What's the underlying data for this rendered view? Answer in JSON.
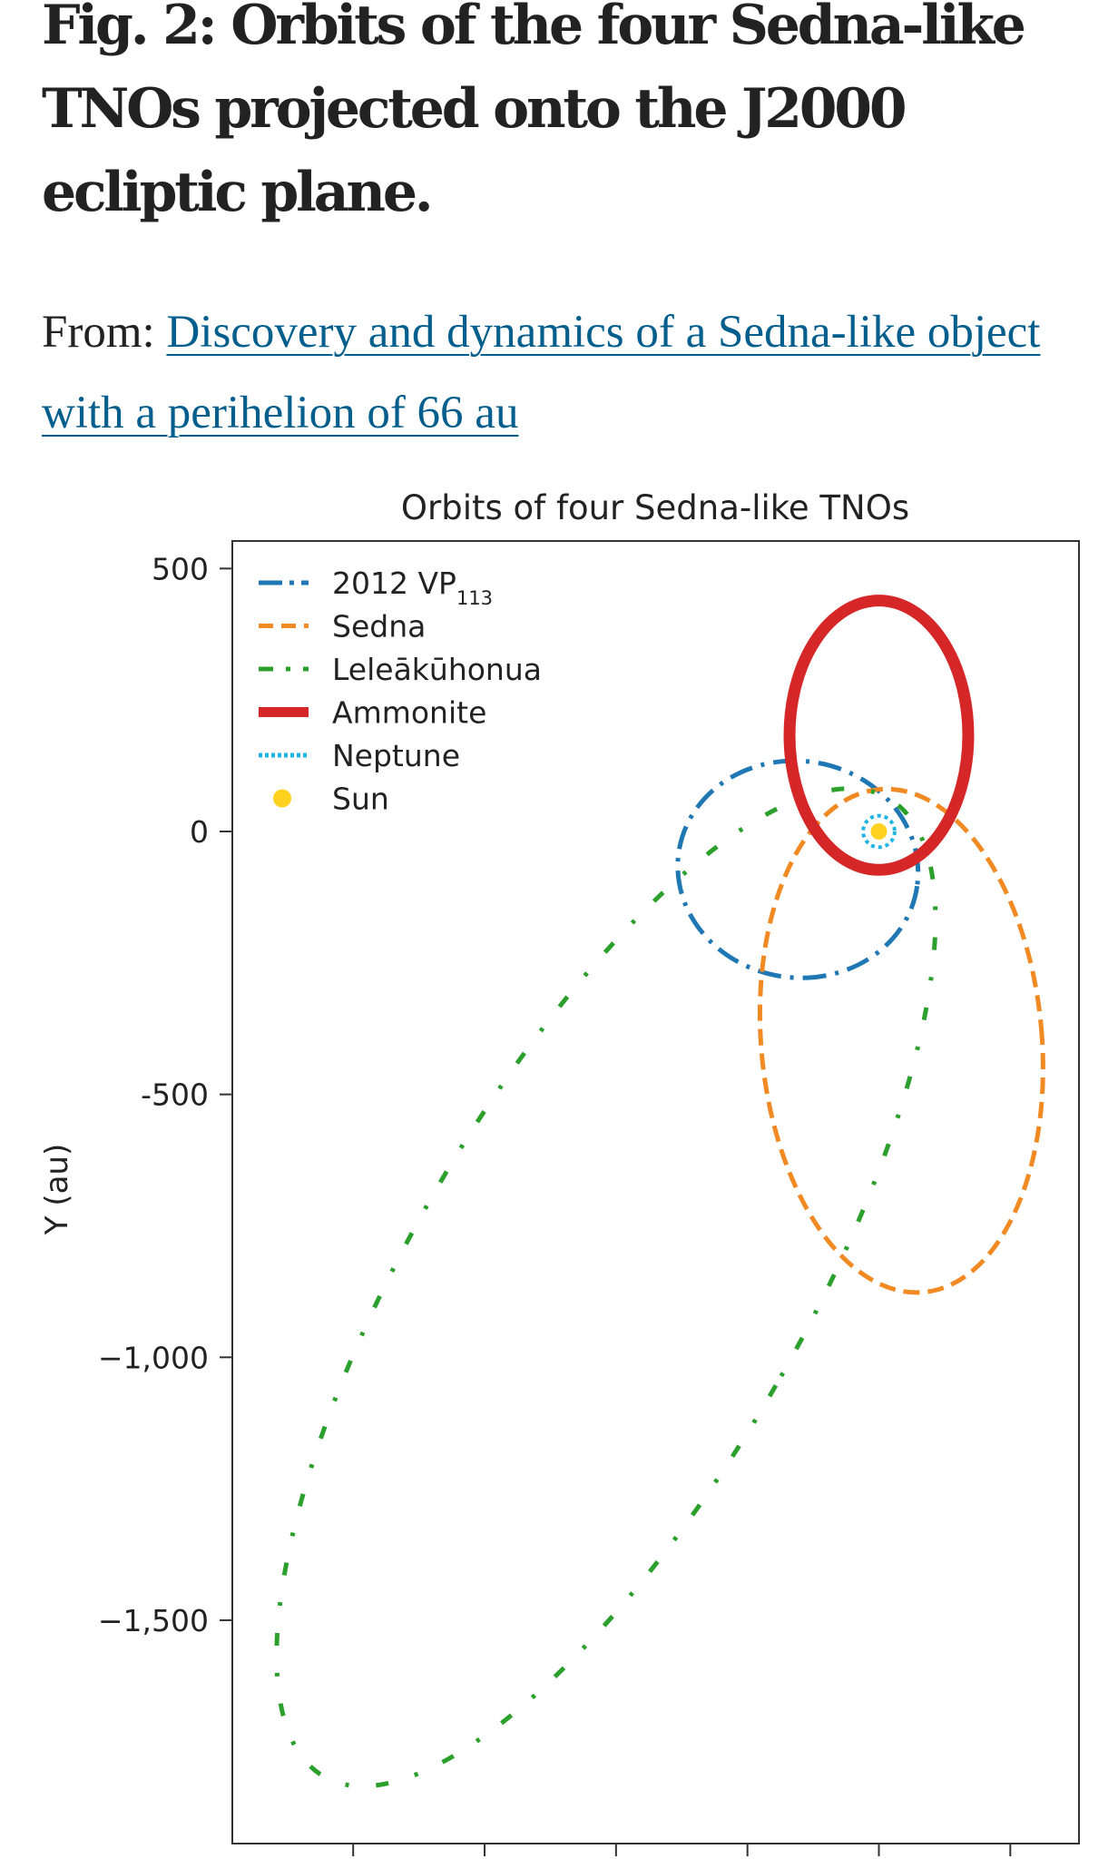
{
  "figure": {
    "title": "Fig. 2: Orbits of the four Sedna-like TNOs projected onto the J2000 ecliptic plane.",
    "from_label": "From:",
    "source_link": "Discovery and dynamics of a Sedna-like object with a perihelion of 66 au"
  },
  "colors": {
    "blue": "#1f77b4",
    "orange": "#f28a24",
    "green": "#2ca02c",
    "red": "#d62728",
    "cyan": "#1fb4e6",
    "sun": "#ffd21f",
    "link": "#025e8d"
  },
  "chart_data": {
    "type": "line",
    "title": "Orbits of four Sedna-like TNOs",
    "xlabel": "",
    "ylabel": "Y (au)",
    "ylim": [
      -1900,
      550
    ],
    "xlim": [
      -1450,
      350
    ],
    "yticks": [
      500,
      0,
      -500,
      -1000,
      -1500
    ],
    "ytick_labels": [
      "500",
      "0",
      "-500",
      "−1,000",
      "−1,500"
    ],
    "xticks": [
      -1000,
      -750,
      -500,
      -250,
      0,
      250
    ],
    "grid": false,
    "legend_position": "top-left",
    "legend": [
      {
        "name": "2012 VP",
        "sub": "113",
        "style": "dashdot",
        "color": "blue"
      },
      {
        "name": "Sedna",
        "style": "dashed",
        "color": "orange"
      },
      {
        "name": "Leleākūhonua",
        "style": "dashdot-sparse",
        "color": "green"
      },
      {
        "name": "Ammonite",
        "style": "solid-thick",
        "color": "red"
      },
      {
        "name": "Neptune",
        "style": "dotted",
        "color": "cyan"
      },
      {
        "name": "Sun",
        "style": "marker",
        "color": "sun"
      }
    ],
    "orbits": [
      {
        "name": "2012 VP113",
        "center": [
          -154,
          -72
        ],
        "semi_x": 229,
        "semi_y": 206,
        "rotation_deg": 8,
        "color": "blue",
        "dash": "dashdot"
      },
      {
        "name": "Sedna",
        "center": [
          43,
          -398
        ],
        "semi_x": 267,
        "semi_y": 480,
        "rotation_deg": -5,
        "color": "orange",
        "dash": "dashed"
      },
      {
        "name": "Leleākūhonua",
        "center": [
          -519,
          -867
        ],
        "semi_x": 373,
        "semi_y": 1074,
        "rotation_deg": 30,
        "color": "green",
        "dash": "sparse"
      },
      {
        "name": "Ammonite",
        "center": [
          0,
          183
        ],
        "semi_x": 170,
        "semi_y": 256,
        "rotation_deg": 0,
        "color": "red",
        "dash": "solid"
      },
      {
        "name": "Neptune",
        "center": [
          0,
          0
        ],
        "semi_x": 30,
        "semi_y": 30,
        "rotation_deg": 0,
        "color": "cyan",
        "dash": "dotted"
      }
    ],
    "sun": [
      0,
      0
    ]
  }
}
